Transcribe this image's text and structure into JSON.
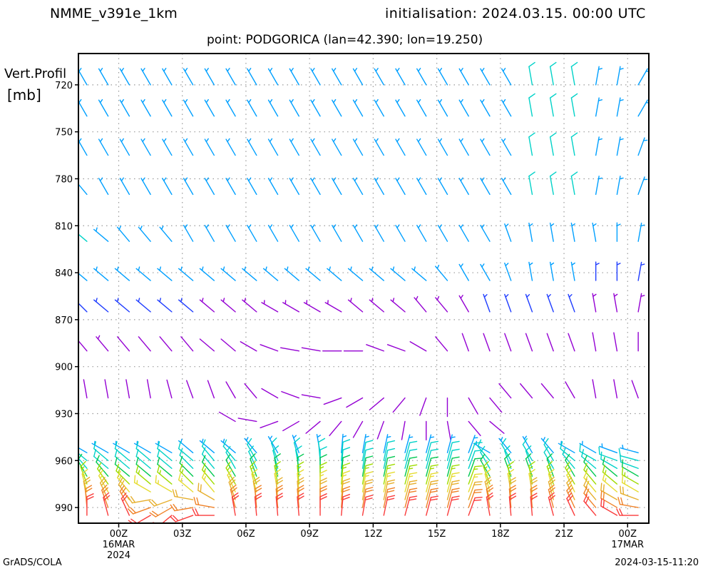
{
  "header": {
    "model": "NMME_v391e_1km",
    "init": "initialisation: 2024.03.15. 00:00 UTC",
    "point": "point: PODGORICA (lan=42.390; lon=19.250)"
  },
  "footer": {
    "credit": "GrADS/COLA",
    "stamp": "2024-03-15-11:20"
  },
  "chart_data": {
    "type": "wind-barb profile",
    "title": "",
    "ylabel": [
      "Vert.Profil",
      "[mb]"
    ],
    "y_ticks": [
      720,
      750,
      780,
      810,
      840,
      870,
      900,
      930,
      960,
      990
    ],
    "y_range": [
      700,
      1000
    ],
    "y_reversed": true,
    "x_ticks": [
      {
        "hour": 24,
        "label": "00Z",
        "sub": [
          "16MAR",
          "2024"
        ]
      },
      {
        "hour": 27,
        "label": "03Z"
      },
      {
        "hour": 30,
        "label": "06Z"
      },
      {
        "hour": 33,
        "label": "09Z"
      },
      {
        "hour": 36,
        "label": "12Z"
      },
      {
        "hour": 39,
        "label": "15Z"
      },
      {
        "hour": 42,
        "label": "18Z"
      },
      {
        "hour": 45,
        "label": "21Z"
      },
      {
        "hour": 48,
        "label": "00Z",
        "sub": [
          "17MAR"
        ]
      }
    ],
    "x_range": [
      22.1,
      49.0
    ],
    "grid": true,
    "barb_times_hours": [
      22.5,
      23.5,
      24.5,
      25.5,
      26.5,
      27.5,
      28.5,
      29.5,
      30.5,
      31.5,
      32.5,
      33.5,
      34.5,
      35.5,
      36.5,
      37.5,
      38.5,
      39.5,
      40.5,
      41.5,
      42.5,
      43.5,
      44.5,
      45.5,
      46.5,
      47.5,
      48.5
    ],
    "upper_levels_mb": [
      720,
      740,
      765,
      790,
      820,
      845,
      865,
      890,
      920,
      935
    ],
    "upper_rows": [
      {
        "level": 720,
        "dir": [
          330,
          330,
          330,
          330,
          330,
          330,
          330,
          330,
          330,
          330,
          330,
          330,
          330,
          330,
          330,
          330,
          330,
          330,
          330,
          330,
          330,
          350,
          350,
          350,
          10,
          10,
          30
        ],
        "kt": [
          8,
          8,
          8,
          8,
          8,
          8,
          8,
          8,
          8,
          8,
          8,
          8,
          8,
          8,
          8,
          8,
          8,
          8,
          8,
          8,
          8,
          10,
          10,
          10,
          9,
          9,
          8
        ]
      },
      {
        "level": 740,
        "dir": [
          330,
          330,
          330,
          330,
          330,
          330,
          330,
          330,
          330,
          330,
          330,
          330,
          330,
          330,
          330,
          330,
          330,
          330,
          330,
          330,
          330,
          350,
          350,
          350,
          10,
          10,
          30
        ],
        "kt": [
          8,
          8,
          8,
          8,
          8,
          8,
          8,
          8,
          9,
          9,
          9,
          9,
          9,
          9,
          9,
          9,
          9,
          9,
          9,
          9,
          9,
          10,
          10,
          10,
          9,
          9,
          8
        ]
      },
      {
        "level": 765,
        "dir": [
          330,
          330,
          330,
          330,
          330,
          330,
          330,
          330,
          330,
          330,
          330,
          330,
          330,
          330,
          330,
          330,
          330,
          330,
          330,
          330,
          330,
          350,
          350,
          350,
          10,
          10,
          20
        ],
        "kt": [
          8,
          8,
          8,
          8,
          8,
          8,
          9,
          9,
          9,
          9,
          9,
          9,
          9,
          9,
          9,
          9,
          9,
          9,
          9,
          9,
          9,
          10,
          10,
          10,
          9,
          9,
          8
        ]
      },
      {
        "level": 790,
        "dir": [
          320,
          330,
          330,
          330,
          330,
          330,
          330,
          330,
          330,
          330,
          330,
          330,
          330,
          330,
          330,
          330,
          330,
          330,
          330,
          330,
          330,
          350,
          350,
          350,
          10,
          10,
          20
        ],
        "kt": [
          8,
          8,
          8,
          8,
          8,
          8,
          9,
          9,
          9,
          9,
          9,
          9,
          9,
          9,
          9,
          9,
          9,
          9,
          9,
          9,
          9,
          10,
          10,
          10,
          9,
          9,
          8
        ]
      },
      {
        "level": 820,
        "dir": [
          310,
          310,
          320,
          320,
          320,
          330,
          330,
          330,
          330,
          330,
          330,
          330,
          330,
          330,
          330,
          330,
          330,
          330,
          330,
          330,
          340,
          350,
          350,
          350,
          350,
          0,
          10
        ],
        "kt": [
          10,
          9,
          9,
          9,
          9,
          9,
          9,
          9,
          9,
          9,
          9,
          9,
          9,
          9,
          9,
          9,
          9,
          9,
          9,
          9,
          9,
          9,
          9,
          9,
          9,
          8,
          8
        ]
      },
      {
        "level": 845,
        "dir": [
          310,
          310,
          310,
          310,
          310,
          310,
          310,
          310,
          310,
          310,
          310,
          310,
          310,
          310,
          310,
          310,
          310,
          320,
          330,
          330,
          340,
          350,
          350,
          350,
          0,
          0,
          10
        ],
        "kt": [
          8,
          8,
          8,
          8,
          8,
          8,
          8,
          8,
          8,
          8,
          8,
          8,
          8,
          8,
          8,
          8,
          8,
          8,
          8,
          8,
          8,
          8,
          8,
          8,
          6,
          6,
          6
        ]
      },
      {
        "level": 865,
        "dir": [
          315,
          310,
          310,
          310,
          310,
          310,
          310,
          310,
          310,
          300,
          300,
          300,
          300,
          310,
          310,
          310,
          320,
          320,
          330,
          340,
          340,
          340,
          340,
          340,
          350,
          350,
          10
        ],
        "kt": [
          7,
          7,
          7,
          6,
          6,
          6,
          5,
          5,
          5,
          5,
          5,
          5,
          5,
          5,
          5,
          5,
          5,
          5,
          5,
          6,
          6,
          6,
          6,
          6,
          5,
          5,
          5
        ]
      },
      {
        "level": 890,
        "dir": [
          320,
          320,
          320,
          320,
          320,
          320,
          310,
          310,
          300,
          290,
          280,
          280,
          270,
          270,
          290,
          290,
          300,
          320,
          340,
          340,
          340,
          340,
          340,
          340,
          350,
          350,
          0
        ],
        "kt": [
          5,
          5,
          4,
          4,
          4,
          4,
          4,
          4,
          4,
          4,
          4,
          4,
          4,
          4,
          4,
          4,
          4,
          4,
          4,
          4,
          4,
          4,
          4,
          4,
          4,
          4,
          4
        ]
      },
      {
        "level": 920,
        "dir": [
          350,
          350,
          350,
          350,
          345,
          340,
          340,
          330,
          320,
          300,
          290,
          280,
          250,
          240,
          230,
          220,
          200,
          180,
          150,
          140,
          320,
          320,
          320,
          330,
          350,
          350,
          340
        ],
        "kt": [
          4,
          4,
          4,
          4,
          4,
          4,
          4,
          4,
          4,
          3,
          3,
          3,
          3,
          3,
          3,
          3,
          3,
          3,
          3,
          3,
          3,
          3,
          3,
          3,
          3,
          3,
          3
        ]
      },
      {
        "level": 935,
        "dir": [
          340,
          340,
          340,
          340,
          340,
          340,
          340,
          300,
          280,
          250,
          240,
          230,
          220,
          210,
          200,
          190,
          180,
          170,
          140,
          130,
          300,
          310,
          320,
          330,
          340,
          340,
          340
        ],
        "kt": [
          0,
          0,
          0,
          0,
          0,
          0,
          0,
          3,
          3,
          3,
          3,
          3,
          3,
          3,
          3,
          3,
          3,
          3,
          3,
          3,
          0,
          0,
          0,
          0,
          0,
          0,
          0
        ]
      }
    ],
    "lower_levels_mb": [
      955,
      960,
      965,
      970,
      975,
      980,
      985,
      990,
      995
    ],
    "lower_dir": [
      [
        300,
        300,
        300,
        300,
        300,
        310,
        310,
        310,
        320,
        330,
        340,
        350,
        5,
        10,
        12,
        15,
        15,
        15,
        20,
        300,
        320,
        330,
        320,
        300,
        300,
        290,
        285
      ],
      [
        310,
        310,
        310,
        310,
        310,
        310,
        320,
        320,
        330,
        340,
        345,
        355,
        5,
        10,
        12,
        15,
        15,
        15,
        20,
        320,
        330,
        330,
        330,
        310,
        300,
        290,
        285
      ],
      [
        320,
        310,
        310,
        310,
        310,
        315,
        320,
        330,
        335,
        345,
        350,
        0,
        5,
        10,
        12,
        15,
        15,
        15,
        20,
        330,
        340,
        340,
        330,
        320,
        310,
        300,
        290
      ],
      [
        330,
        320,
        310,
        310,
        310,
        315,
        320,
        330,
        340,
        350,
        355,
        0,
        5,
        10,
        12,
        15,
        15,
        15,
        20,
        330,
        340,
        340,
        340,
        330,
        320,
        310,
        300
      ],
      [
        340,
        325,
        315,
        310,
        310,
        315,
        320,
        330,
        340,
        350,
        355,
        0,
        5,
        10,
        12,
        15,
        15,
        15,
        20,
        340,
        350,
        350,
        340,
        330,
        320,
        310,
        300
      ],
      [
        345,
        330,
        320,
        300,
        300,
        310,
        320,
        335,
        345,
        350,
        355,
        0,
        5,
        10,
        12,
        15,
        15,
        15,
        20,
        345,
        350,
        350,
        345,
        335,
        320,
        310,
        300
      ],
      [
        350,
        335,
        325,
        260,
        250,
        280,
        300,
        340,
        350,
        355,
        355,
        0,
        5,
        10,
        12,
        15,
        15,
        15,
        20,
        345,
        355,
        355,
        345,
        335,
        320,
        300,
        290
      ],
      [
        355,
        340,
        330,
        250,
        240,
        260,
        280,
        345,
        355,
        355,
        355,
        0,
        5,
        10,
        12,
        15,
        15,
        15,
        20,
        350,
        355,
        355,
        345,
        335,
        320,
        300,
        280
      ],
      [
        0,
        345,
        335,
        240,
        230,
        250,
        270,
        350,
        355,
        355,
        355,
        0,
        5,
        10,
        12,
        15,
        15,
        15,
        20,
        350,
        355,
        355,
        345,
        335,
        320,
        300,
        270
      ]
    ],
    "lower_kt": [
      8,
      10,
      12,
      14,
      16,
      18,
      20,
      22,
      24
    ],
    "color_scale_kt": [
      [
        2,
        "#9400d3"
      ],
      [
        6,
        "#1e3cff"
      ],
      [
        8,
        "#00a0ff"
      ],
      [
        10,
        "#00d2c8"
      ],
      [
        13,
        "#00c850"
      ],
      [
        15,
        "#a0dc00"
      ],
      [
        17,
        "#e6dc32"
      ],
      [
        19,
        "#e6af2d"
      ],
      [
        21,
        "#f08228"
      ],
      [
        24,
        "#fa3c3c"
      ]
    ]
  }
}
